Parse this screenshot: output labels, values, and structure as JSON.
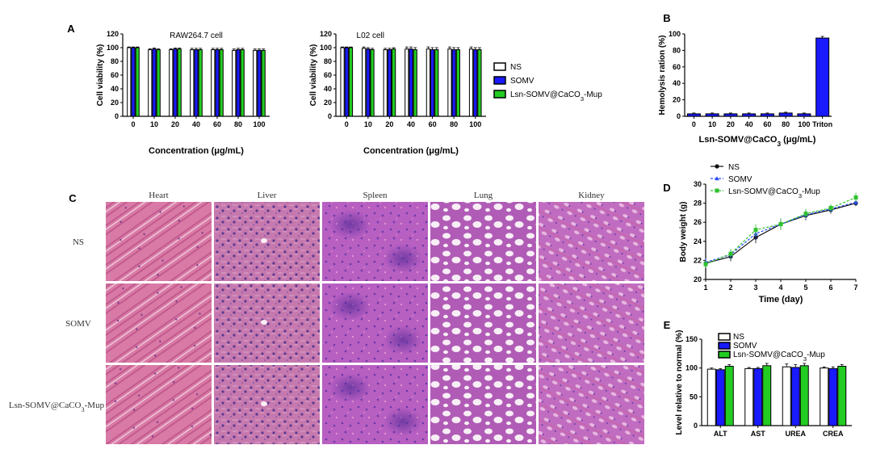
{
  "panels": {
    "A": "A",
    "B": "B",
    "C": "C",
    "D": "D",
    "E": "E"
  },
  "legend": {
    "ns": "NS",
    "somv": "SOMV",
    "lsn_pre": "Lsn-SOMV@CaCO",
    "lsn_sub": "3",
    "lsn_post": "-Mup"
  },
  "colors": {
    "ns": "#ffffff",
    "somv": "#1a1aff",
    "lsn": "#22cc22",
    "triton": "#1a1aff"
  },
  "chart_data": [
    {
      "id": "A1",
      "type": "bar",
      "title": "RAW264.7 cell",
      "xlabel": "Concentration (μg/mL)",
      "ylabel": "Cell viability (%)",
      "ylim": [
        0,
        120
      ],
      "yticks": [
        "0",
        "20",
        "40",
        "60",
        "80",
        "100",
        "120"
      ],
      "categories": [
        "0",
        "10",
        "20",
        "40",
        "60",
        "80",
        "100"
      ],
      "series": [
        {
          "name": "NS",
          "values": [
            100,
            97,
            97,
            97,
            97,
            96,
            96
          ],
          "err": [
            1,
            1.5,
            1.5,
            2,
            2,
            2,
            2
          ]
        },
        {
          "name": "SOMV",
          "values": [
            100,
            98,
            98,
            97,
            97,
            97,
            96
          ],
          "err": [
            1,
            1.5,
            1.5,
            2,
            2,
            2,
            2
          ]
        },
        {
          "name": "Lsn-SOMV@CaCO3-Mup",
          "values": [
            100,
            97,
            98,
            97,
            97,
            97,
            96
          ],
          "err": [
            1,
            1.5,
            1.5,
            2,
            2,
            2,
            2
          ]
        }
      ]
    },
    {
      "id": "A2",
      "type": "bar",
      "title": "L02 cell",
      "xlabel": "Concentration (μg/mL)",
      "ylabel": "Cell viability (%)",
      "ylim": [
        0,
        120
      ],
      "yticks": [
        "0",
        "20",
        "40",
        "60",
        "80",
        "100",
        "120"
      ],
      "categories": [
        "0",
        "10",
        "20",
        "40",
        "60",
        "80",
        "100"
      ],
      "series": [
        {
          "name": "NS",
          "values": [
            100,
            99,
            97,
            98,
            98,
            98,
            98
          ],
          "err": [
            1,
            2,
            2,
            3,
            3,
            3,
            3
          ]
        },
        {
          "name": "SOMV",
          "values": [
            100,
            98,
            97,
            98,
            97,
            97,
            97
          ],
          "err": [
            1,
            2,
            2,
            3,
            3,
            3,
            3
          ]
        },
        {
          "name": "Lsn-SOMV@CaCO3-Mup",
          "values": [
            100,
            97,
            98,
            97,
            97,
            97,
            97
          ],
          "err": [
            1,
            2,
            2,
            3,
            3,
            3,
            3
          ]
        }
      ]
    },
    {
      "id": "B",
      "type": "bar",
      "xlabel_pre": "Lsn-SOMV@CaCO",
      "xlabel_sub": "3",
      "xlabel_post": " (μg/mL)",
      "ylabel": "Hemolysis ration (%)",
      "ylim": [
        0,
        100
      ],
      "yticks": [
        "0",
        "20",
        "40",
        "60",
        "80",
        "100"
      ],
      "categories": [
        "0",
        "10",
        "20",
        "40",
        "60",
        "80",
        "100",
        "Triton"
      ],
      "values": [
        3,
        3,
        3,
        3,
        3,
        4,
        3,
        95
      ],
      "err": [
        1,
        1,
        1,
        1,
        1,
        1,
        1,
        2
      ]
    },
    {
      "id": "D",
      "type": "line",
      "xlabel": "Time (day)",
      "ylabel": "Body weight (g)",
      "ylim": [
        20,
        30
      ],
      "xlim": [
        1,
        7
      ],
      "yticks": [
        "20",
        "22",
        "24",
        "26",
        "28",
        "30"
      ],
      "xticks": [
        "1",
        "2",
        "3",
        "4",
        "5",
        "6",
        "7"
      ],
      "x": [
        1,
        2,
        3,
        4,
        5,
        6,
        7
      ],
      "series": [
        {
          "name": "NS",
          "values": [
            21.7,
            22.4,
            24.4,
            25.8,
            26.7,
            27.3,
            28.0
          ],
          "err": [
            0.4,
            0.5,
            0.6,
            0.6,
            0.5,
            0.4,
            0.3
          ]
        },
        {
          "name": "SOMV",
          "values": [
            21.8,
            22.6,
            24.8,
            25.8,
            26.8,
            27.4,
            28.1
          ],
          "err": [
            0.4,
            0.5,
            0.6,
            0.6,
            0.5,
            0.4,
            0.3
          ]
        },
        {
          "name": "Lsn-SOMV@CaCO3-Mup",
          "values": [
            21.6,
            22.7,
            25.2,
            25.8,
            26.9,
            27.5,
            28.6
          ],
          "err": [
            0.4,
            0.5,
            0.6,
            0.6,
            0.5,
            0.4,
            0.5
          ]
        }
      ]
    },
    {
      "id": "E",
      "type": "bar",
      "ylabel": "Level relative to normal (%)",
      "ylim": [
        0,
        150
      ],
      "yticks": [
        "0",
        "50",
        "100",
        "150"
      ],
      "categories": [
        "ALT",
        "AST",
        "UREA",
        "CREA"
      ],
      "series": [
        {
          "name": "NS",
          "values": [
            98,
            99,
            102,
            100
          ],
          "err": [
            2,
            2,
            5,
            2
          ]
        },
        {
          "name": "SOMV",
          "values": [
            97,
            99,
            101,
            99
          ],
          "err": [
            2,
            2,
            5,
            3
          ]
        },
        {
          "name": "Lsn-SOMV@CaCO3-Mup",
          "values": [
            103,
            104,
            104,
            103
          ],
          "err": [
            3,
            4,
            4,
            3
          ]
        }
      ]
    }
  ],
  "histology": {
    "organs": [
      "Heart",
      "Liver",
      "Spleen",
      "Lung",
      "Kidney"
    ],
    "groups": [
      "NS",
      "SOMV"
    ],
    "group3_pre": "Lsn-SOMV@CaCO",
    "group3_sub": "3",
    "group3_post": "-Mup"
  }
}
